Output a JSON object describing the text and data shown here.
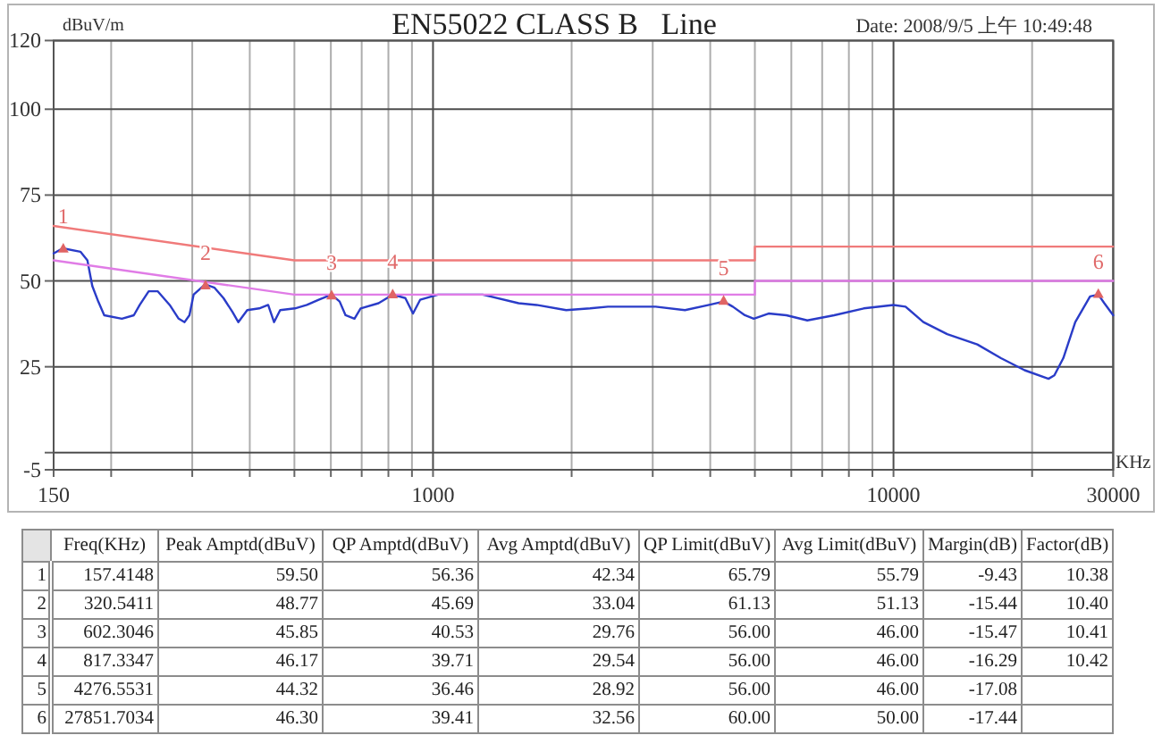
{
  "chart_data": [
    {
      "type": "line",
      "title": "EN55022 CLASS B   Line",
      "subtitle": "Date: 2008/9/5 上午 10:49:48",
      "ylabel": "dBuV/m",
      "xlabel": "KHz",
      "log": "x",
      "xlim": [
        150,
        30000
      ],
      "xticks": [
        150,
        {
          "value": 200,
          "label": null
        },
        {
          "value": 300,
          "label": null
        },
        {
          "value": 400,
          "label": null
        },
        {
          "value": 500,
          "label": null
        },
        {
          "value": 600,
          "label": null
        },
        {
          "value": 700,
          "label": null
        },
        {
          "value": 800,
          "label": null
        },
        {
          "value": 900,
          "label": null
        },
        1000,
        {
          "value": 2000,
          "label": null
        },
        {
          "value": 3000,
          "label": null
        },
        {
          "value": 4000,
          "label": null
        },
        {
          "value": 5000,
          "label": null
        },
        {
          "value": 6000,
          "label": null
        },
        {
          "value": 7000,
          "label": null
        },
        {
          "value": 8000,
          "label": null
        },
        {
          "value": 9000,
          "label": null
        },
        10000,
        {
          "value": 20000,
          "label": null
        },
        30000
      ],
      "ylim": [
        -5,
        120
      ],
      "yticks": [
        -5,
        {
          "value": 0,
          "label": null
        },
        25,
        50,
        75,
        100,
        120
      ],
      "grid": true,
      "series": [
        {
          "type": "line",
          "color": "#2a3cc8",
          "x": [
            150,
            157,
            171.5,
            177.6,
            182,
            187.5,
            193.2,
            211,
            224,
            230.7,
            241.3,
            252.3,
            268,
            280.3,
            288.7,
            295.8,
            302,
            320,
            335.4,
            350.7,
            366.7,
            377.7,
            394.9,
            419.3,
            438.5,
            451.6,
            465.6,
            501.3,
            532.3,
            564.6,
            602,
            627,
            645.7,
            675.2,
            696.1,
            761.6,
            817,
            870.7,
            904.8,
            937.6,
            1025.6,
            1282,
            1534,
            1678,
            1946,
            2193,
            2398,
            3044,
            3525,
            3976,
            4277,
            4478,
            4756,
            4973,
            5354,
            5855,
            6500,
            7432,
            8618,
            10000,
            10620,
            11612,
            13081,
            15202,
            17114,
            19261,
            21709,
            22355,
            23375,
            24816,
            26725,
            27850,
            28700,
            30000
          ],
          "values": [
            58,
            59.5,
            58.5,
            56,
            48.5,
            44,
            40,
            39,
            40,
            43,
            47,
            47,
            43,
            39,
            38,
            40,
            46,
            49,
            48,
            45,
            41,
            38,
            41.5,
            42,
            43,
            38,
            41.5,
            42,
            43,
            44.5,
            46,
            44,
            40,
            39,
            42,
            43.5,
            46,
            45,
            40.5,
            44.5,
            46,
            46,
            43.5,
            43,
            41.5,
            42,
            42.5,
            42.5,
            41.5,
            43,
            44,
            42.5,
            40,
            39,
            40.5,
            40,
            38.5,
            40,
            42,
            43,
            42.5,
            38,
            34.5,
            31.5,
            27.5,
            24,
            21.5,
            22.5,
            27.5,
            38,
            45.5,
            46,
            43.5,
            40
          ]
        },
        {
          "type": "line",
          "color": "#f07a7a",
          "x": [
            150,
            500,
            5000,
            5000,
            30000
          ],
          "values": [
            66,
            56,
            56,
            60,
            60
          ]
        },
        {
          "type": "line",
          "color": "#e07ce6",
          "x": [
            150,
            500,
            5000,
            5000,
            30000
          ],
          "values": [
            56,
            46,
            46,
            50,
            50
          ]
        },
        {
          "type": "scatter",
          "color": "#e06464",
          "marker": "triangle",
          "x": [
            157.4148,
            320.5411,
            602.3046,
            817.3347,
            4276.5531,
            27851.7034
          ],
          "values": [
            59.5,
            48.77,
            45.85,
            46.17,
            44.32,
            46.3
          ]
        }
      ],
      "annotations": [
        {
          "text": "1",
          "x": 157.4148,
          "y": 59.5
        },
        {
          "text": "2",
          "x": 320.5411,
          "y": 48.77
        },
        {
          "text": "3",
          "x": 602.3046,
          "y": 45.85
        },
        {
          "text": "4",
          "x": 817.3347,
          "y": 46.17
        },
        {
          "text": "5",
          "x": 4276.5531,
          "y": 44.32
        },
        {
          "text": "6",
          "x": 27851.7034,
          "y": 46.3
        }
      ]
    },
    {
      "type": "heatmap",
      "categories": [
        "Freq(KHz)",
        "Peak Amptd(dBuV)",
        "QP Amptd(dBuV)",
        "Avg Amptd(dBuV)",
        "QP Limit(dBuV)",
        "Avg Limit(dBuV)",
        "Margin(dB)",
        "Factor(dB)"
      ],
      "y_categories": [
        "1",
        "2",
        "3",
        "4",
        "5",
        "6"
      ],
      "cells": [
        [
          157.4148,
          59.5,
          56.36,
          42.34,
          65.79,
          55.79,
          -9.43,
          10.38
        ],
        [
          320.5411,
          48.77,
          45.69,
          33.04,
          61.13,
          51.13,
          -15.44,
          10.4
        ],
        [
          602.3046,
          45.85,
          40.53,
          29.76,
          56,
          46,
          -15.47,
          10.41
        ],
        [
          817.3347,
          46.17,
          39.71,
          29.54,
          56,
          46,
          -16.29,
          10.42
        ],
        [
          4276.5531,
          44.32,
          36.46,
          28.92,
          56,
          46,
          -17.08,
          null
        ],
        [
          27851.7034,
          46.3,
          39.41,
          32.56,
          60,
          50,
          -17.44,
          null
        ]
      ],
      "cell_labels": [
        [
          "157.4148",
          "59.50",
          "56.36",
          "42.34",
          "65.79",
          "55.79",
          "-9.43",
          "10.38"
        ],
        [
          "320.5411",
          "48.77",
          "45.69",
          "33.04",
          "61.13",
          "51.13",
          "-15.44",
          "10.40"
        ],
        [
          "602.3046",
          "45.85",
          "40.53",
          "29.76",
          "56.00",
          "46.00",
          "-15.47",
          "10.41"
        ],
        [
          "817.3347",
          "46.17",
          "39.71",
          "29.54",
          "56.00",
          "46.00",
          "-16.29",
          "10.42"
        ],
        [
          "4276.5531",
          "44.32",
          "36.46",
          "28.92",
          "56.00",
          "46.00",
          "-17.08",
          null
        ],
        [
          "27851.7034",
          "46.30",
          "39.41",
          "32.56",
          "60.00",
          "50.00",
          "-17.44",
          null
        ]
      ]
    }
  ]
}
